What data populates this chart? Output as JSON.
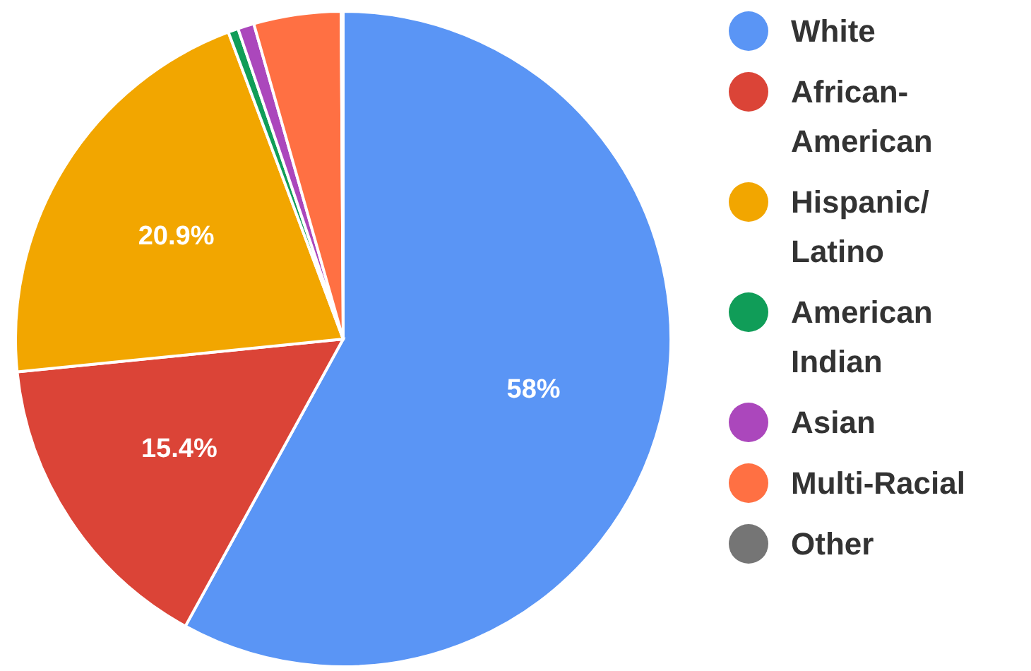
{
  "chart_data": {
    "type": "pie",
    "categories": [
      "White",
      "African-American",
      "Hispanic/Latino",
      "American Indian",
      "Asian",
      "Multi-Racial",
      "Other"
    ],
    "values": [
      58,
      15.4,
      20.9,
      0.5,
      0.8,
      4.3,
      0.1
    ],
    "colors": [
      "#5a95f5",
      "#db4437",
      "#f2a600",
      "#109d58",
      "#ab47bc",
      "#ff7043",
      "#757575"
    ],
    "value_labels": [
      "58%",
      "15.4%",
      "20.9%",
      null,
      null,
      null,
      null
    ],
    "legend": "right"
  }
}
